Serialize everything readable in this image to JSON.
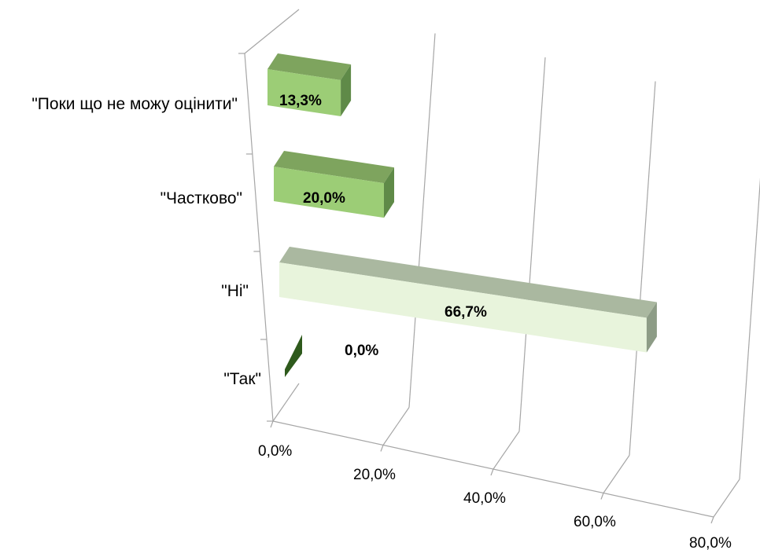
{
  "chart_data": {
    "type": "bar",
    "orientation": "horizontal",
    "three_d": true,
    "categories": [
      "\"Так\"",
      "\"Ні\"",
      "\"Частково\"",
      "\"Поки що не можу оцінити\""
    ],
    "values": [
      0.0,
      66.7,
      20.0,
      13.3
    ],
    "data_labels": [
      "0,0%",
      "66,7%",
      "20,0%",
      "13,3%"
    ],
    "xlim": [
      0,
      80
    ],
    "x_ticks": [
      0,
      20,
      40,
      60,
      80
    ],
    "x_tick_labels": [
      "0,0%",
      "20,0%",
      "40,0%",
      "60,0%",
      "80,0%"
    ],
    "grid": true,
    "legend": "none",
    "colors": {
      "0": {
        "front": "#2e5a1c",
        "top": "#4e7a36",
        "side": "#1e3e10"
      },
      "1": {
        "front": "#e8f4dc",
        "top": "#aab8a0",
        "side": "#8d9c86"
      },
      "2": {
        "front": "#9ccd76",
        "top": "#7ea45e",
        "side": "#5f8a48"
      },
      "3": {
        "front": "#9ccd76",
        "top": "#7ea45e",
        "side": "#5f8a48"
      }
    }
  }
}
